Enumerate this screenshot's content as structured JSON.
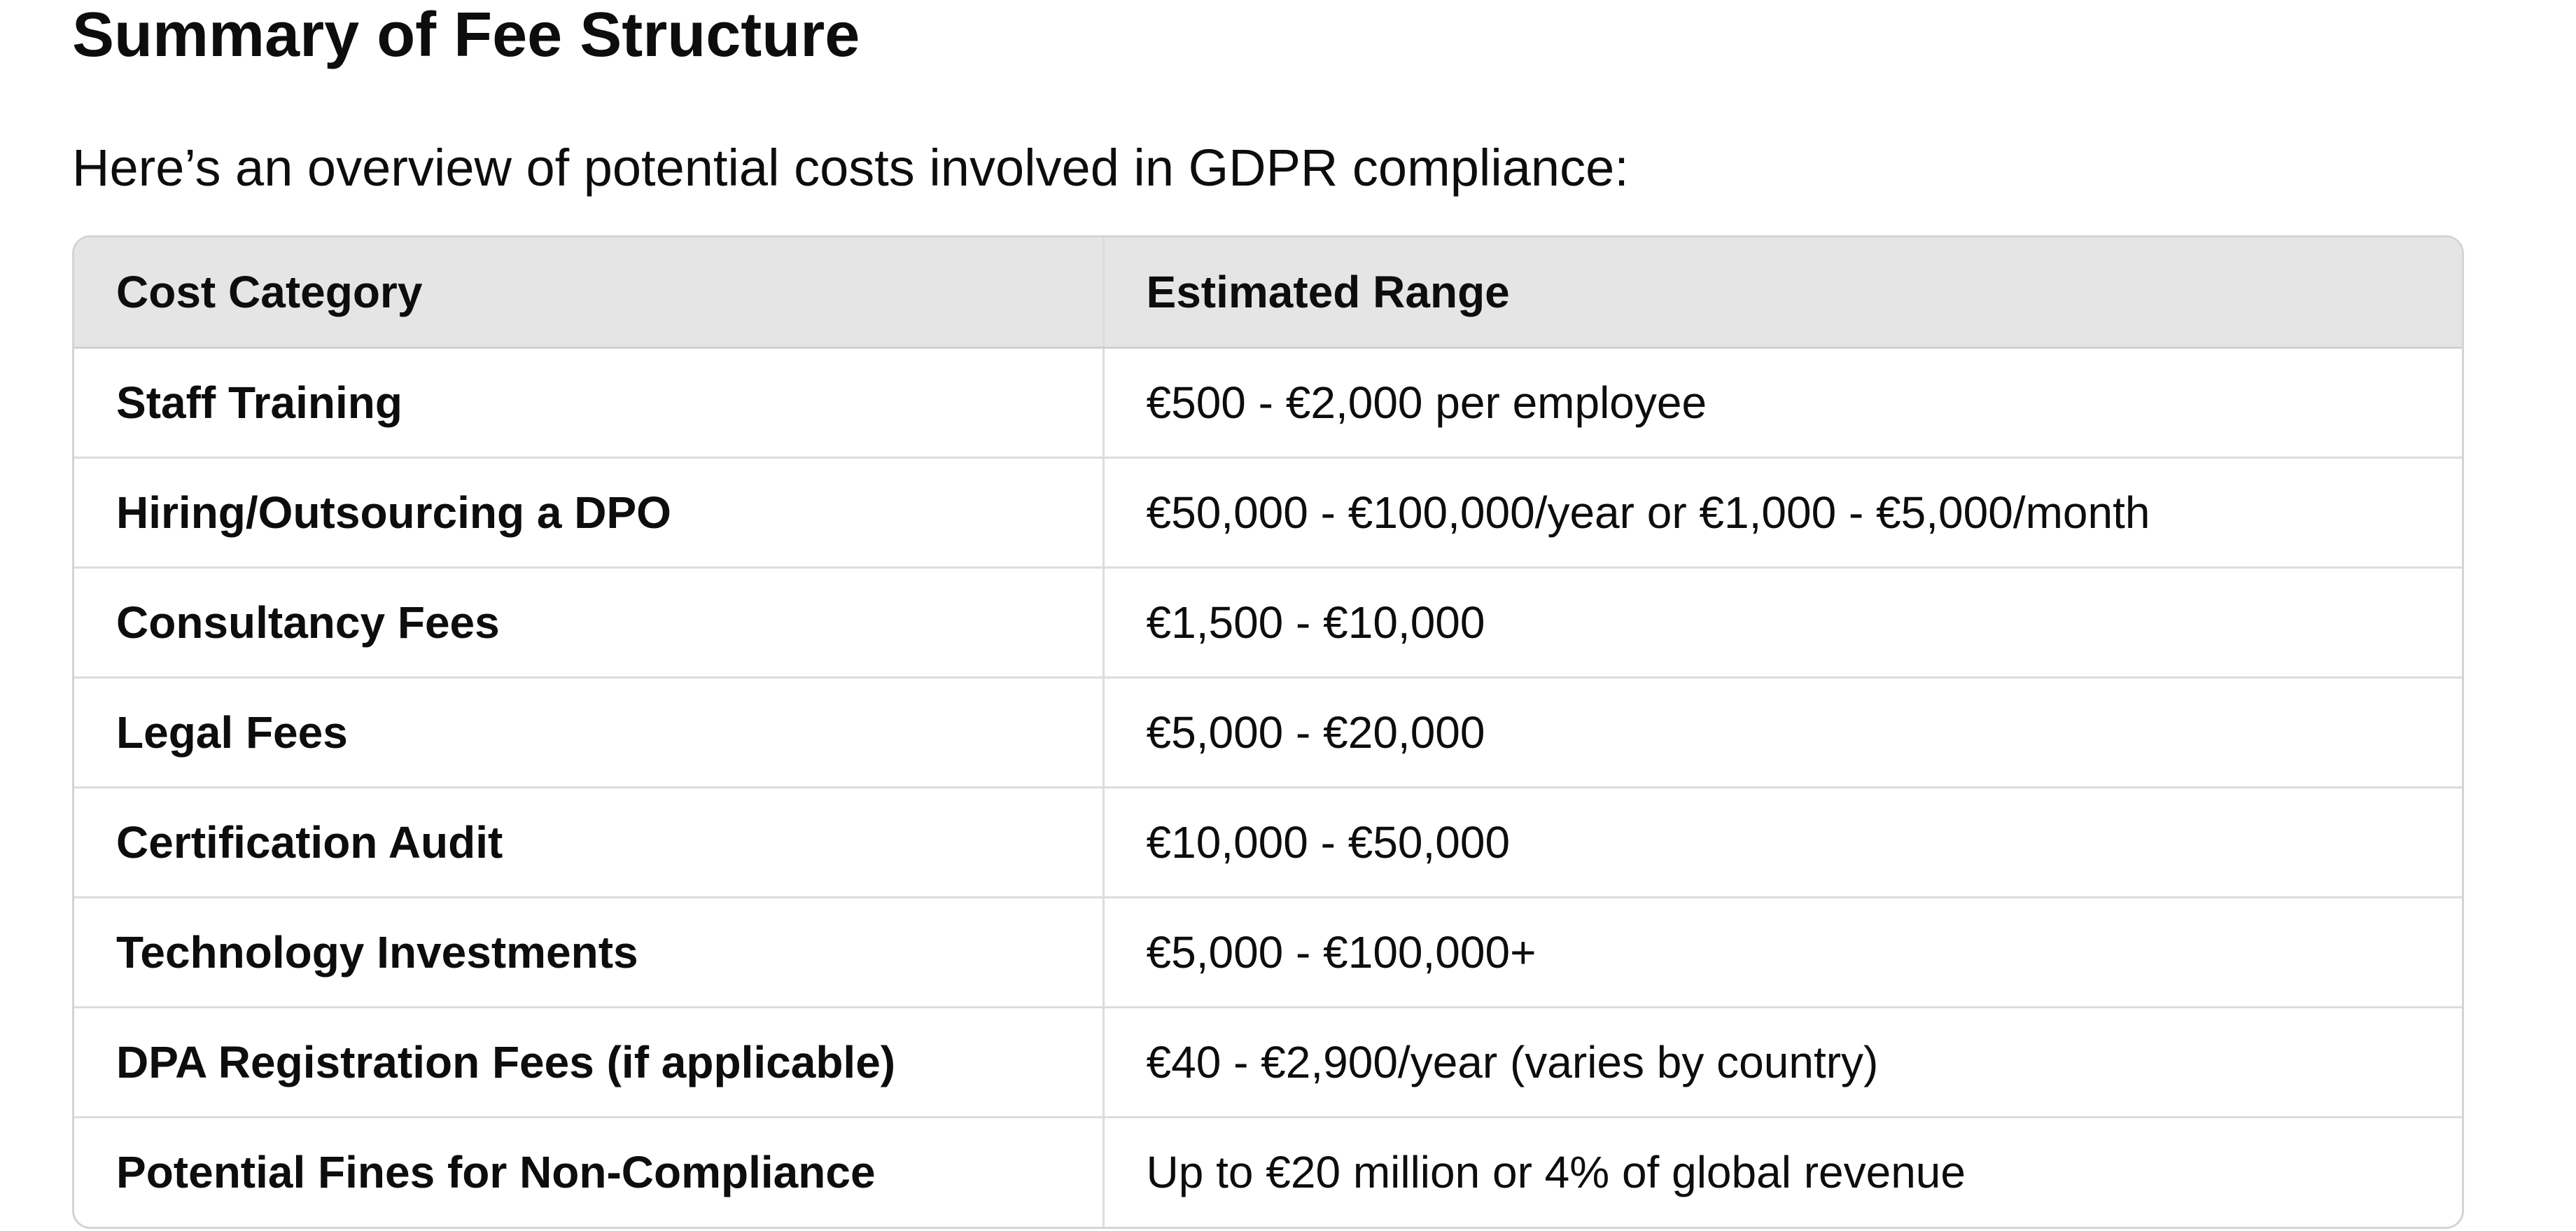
{
  "heading": "Summary of Fee Structure",
  "intro": "Here’s an overview of potential costs involved in GDPR compliance:",
  "table": {
    "headers": [
      "Cost Category",
      "Estimated Range"
    ],
    "rows": [
      {
        "category": "Staff Training",
        "range": "€500 - €2,000 per employee"
      },
      {
        "category": "Hiring/Outsourcing a DPO",
        "range": "€50,000 - €100,000/year or €1,000 - €5,000/month"
      },
      {
        "category": "Consultancy Fees",
        "range": "€1,500 - €10,000"
      },
      {
        "category": "Legal Fees",
        "range": "€5,000 - €20,000"
      },
      {
        "category": "Certification Audit",
        "range": "€10,000 - €50,000"
      },
      {
        "category": "Technology Investments",
        "range": "€5,000 - €100,000+"
      },
      {
        "category": "DPA Registration Fees (if applicable)",
        "range": "€40 - €2,900/year (varies by country)"
      },
      {
        "category": "Potential Fines for Non-Compliance",
        "range": "Up to €20 million or 4% of global revenue"
      }
    ]
  }
}
